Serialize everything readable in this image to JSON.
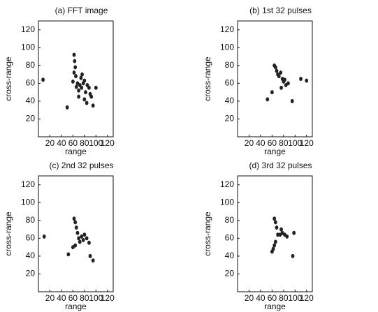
{
  "chart_data": [
    {
      "type": "scatter",
      "title": "(a) FFT image",
      "x_label": "range",
      "y_label": "cross-range",
      "xlim": [
        0,
        130
      ],
      "ylim": [
        0,
        130
      ],
      "xticks": [
        20,
        40,
        60,
        80,
        100,
        120
      ],
      "yticks": [
        20,
        40,
        60,
        80,
        100,
        120
      ],
      "color": "#222",
      "x": [
        50,
        62,
        63,
        64,
        62,
        65,
        60,
        66,
        68,
        70,
        72,
        75,
        78,
        80,
        82,
        85,
        88,
        90,
        74,
        76,
        70,
        80,
        84,
        92,
        95,
        8,
        100
      ],
      "values": [
        33,
        92,
        85,
        78,
        72,
        68,
        62,
        56,
        60,
        52,
        58,
        55,
        60,
        63,
        50,
        58,
        55,
        48,
        66,
        70,
        45,
        42,
        38,
        45,
        35,
        64,
        55
      ]
    },
    {
      "type": "scatter",
      "title": "(b) 1st 32 pulses",
      "x_label": "range",
      "y_label": "cross-range",
      "xlim": [
        0,
        130
      ],
      "ylim": [
        0,
        130
      ],
      "xticks": [
        20,
        40,
        60,
        80,
        100,
        120
      ],
      "yticks": [
        20,
        40,
        60,
        80,
        100,
        120
      ],
      "color": "#222",
      "x": [
        52,
        64,
        66,
        68,
        70,
        72,
        75,
        78,
        80,
        82,
        76,
        84,
        88,
        95,
        60,
        110,
        120
      ],
      "values": [
        42,
        80,
        78,
        74,
        70,
        68,
        72,
        65,
        62,
        64,
        55,
        58,
        60,
        40,
        50,
        65,
        63
      ]
    },
    {
      "type": "scatter",
      "title": "(c) 2nd 32 pulses",
      "x_label": "range",
      "y_label": "cross-range",
      "xlim": [
        0,
        130
      ],
      "ylim": [
        0,
        130
      ],
      "xticks": [
        20,
        40,
        60,
        80,
        100,
        120
      ],
      "yticks": [
        20,
        40,
        60,
        80,
        100,
        120
      ],
      "color": "#222",
      "x": [
        52,
        62,
        64,
        66,
        68,
        70,
        72,
        75,
        78,
        80,
        84,
        88,
        64,
        60,
        90,
        95,
        10
      ],
      "values": [
        42,
        82,
        78,
        72,
        66,
        60,
        56,
        62,
        58,
        64,
        60,
        55,
        52,
        50,
        40,
        35,
        62
      ]
    },
    {
      "type": "scatter",
      "title": "(d) 3rd 32 pulses",
      "x_label": "range",
      "y_label": "cross-range",
      "xlim": [
        0,
        130
      ],
      "ylim": [
        0,
        130
      ],
      "xticks": [
        20,
        40,
        60,
        80,
        100,
        120
      ],
      "yticks": [
        20,
        40,
        60,
        80,
        100,
        120
      ],
      "color": "#222",
      "x": [
        60,
        64,
        66,
        68,
        70,
        74,
        78,
        82,
        86,
        66,
        64,
        62,
        98,
        96,
        76
      ],
      "values": [
        45,
        82,
        78,
        72,
        64,
        64,
        66,
        64,
        62,
        56,
        52,
        48,
        66,
        40,
        70
      ]
    }
  ]
}
